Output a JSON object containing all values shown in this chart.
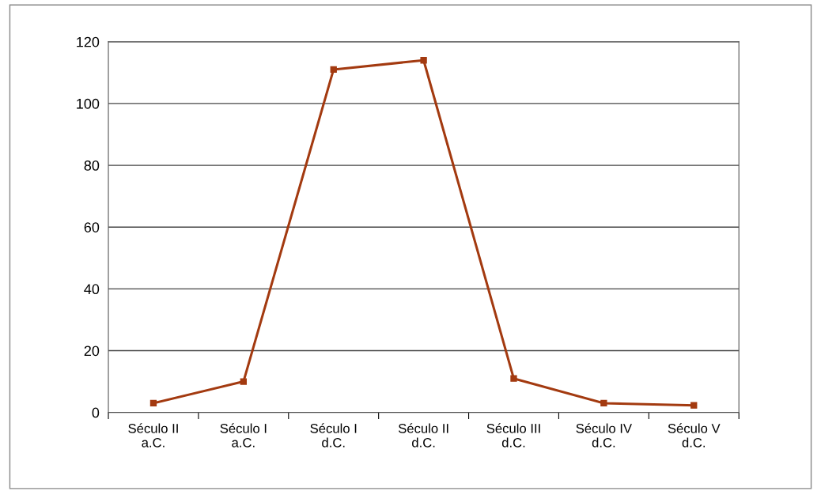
{
  "chart_data": {
    "type": "line",
    "categories": [
      "Século II\na.C.",
      "Século I\na.C.",
      "Século I\nd.C.",
      "Século II\nd.C.",
      "Século III\nd.C.",
      "Século IV\nd.C.",
      "Século V\nd.C."
    ],
    "series": [
      {
        "color": "#a33a10",
        "values": [
          3,
          10,
          111,
          114,
          11,
          3,
          2.3
        ]
      }
    ],
    "ylim": [
      0,
      120
    ],
    "yticks": [
      0,
      20,
      40,
      60,
      80,
      100,
      120
    ],
    "grid": "y",
    "marker": "square",
    "line_style": "solid",
    "legend": false
  }
}
